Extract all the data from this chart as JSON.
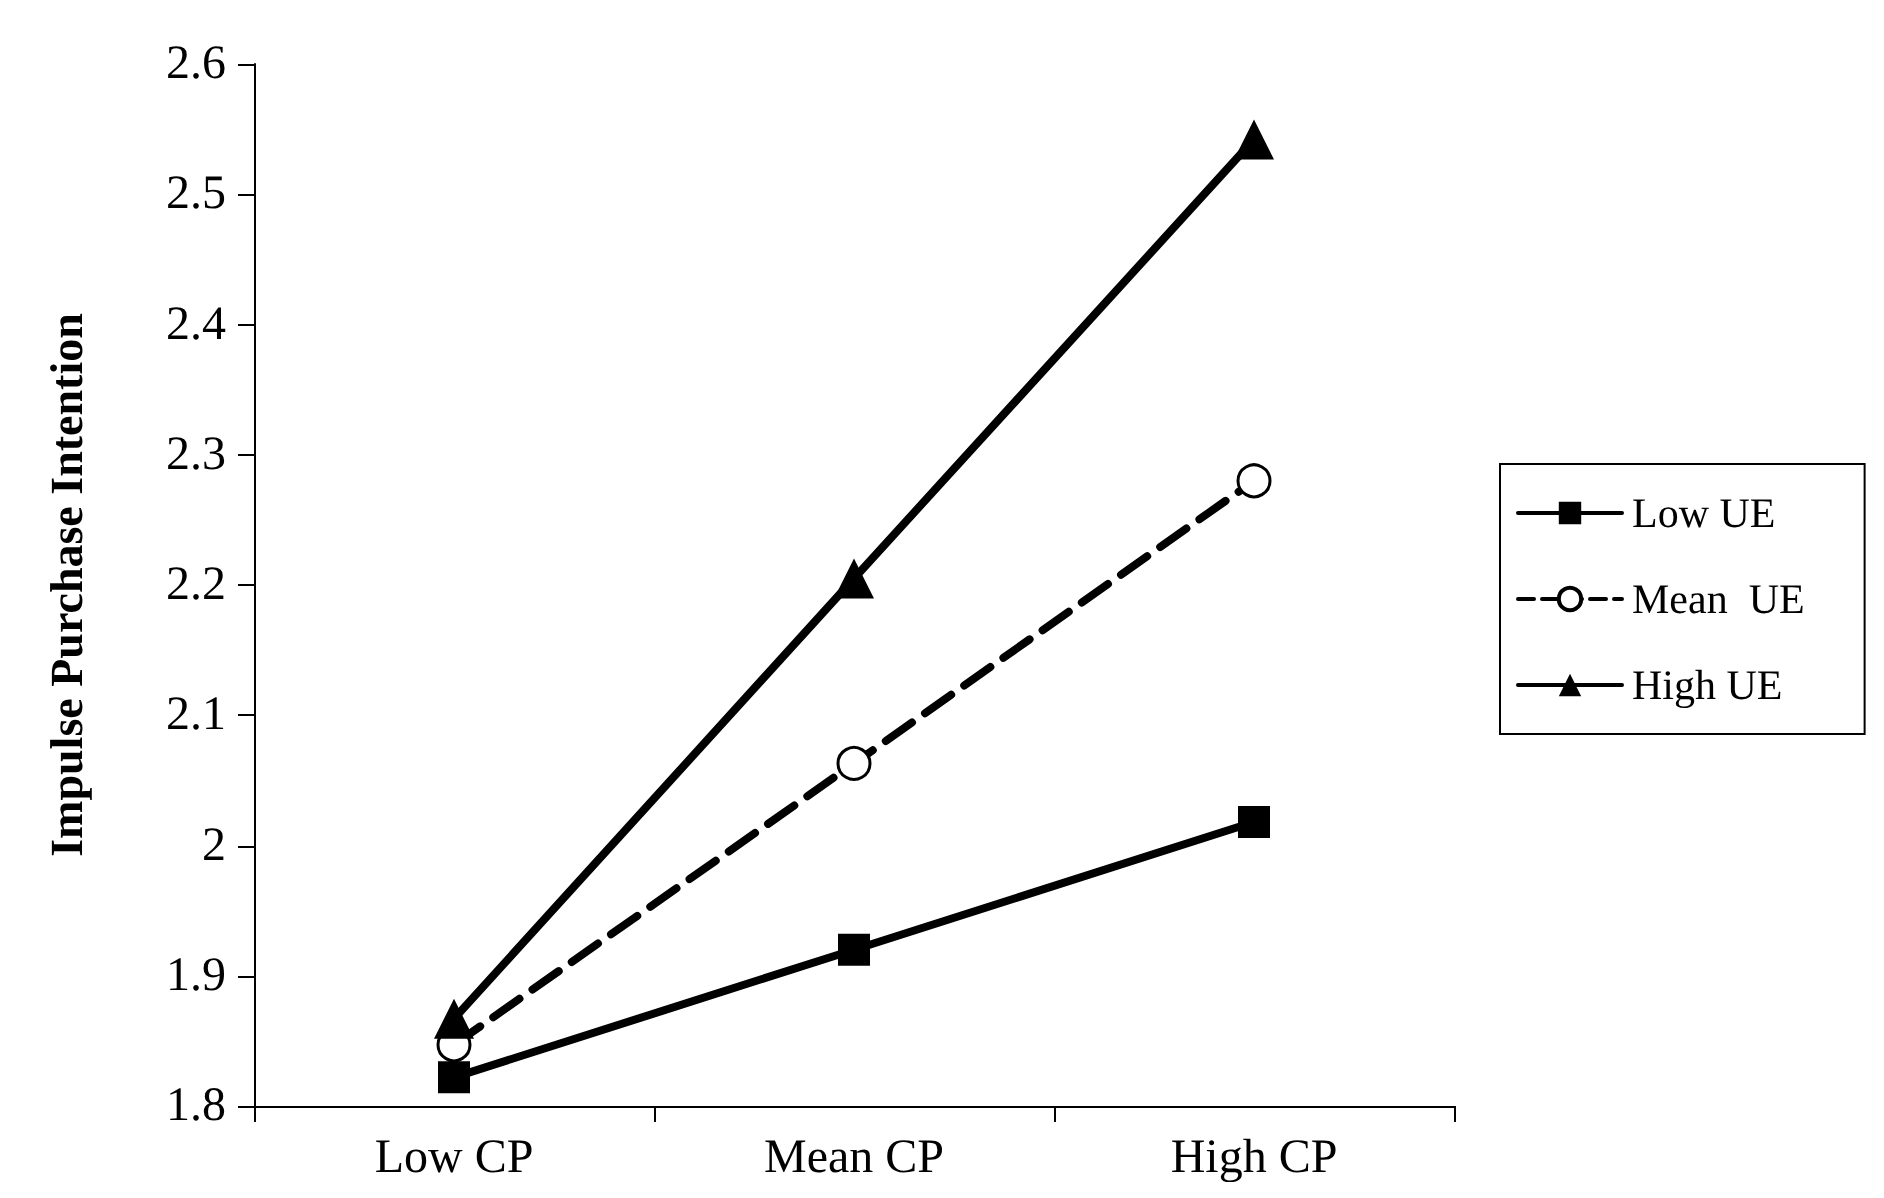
{
  "chart_data": {
    "type": "line",
    "ylabel": "Impulse Purchase Intention",
    "categories": [
      "Low CP",
      "Mean CP",
      "High CP"
    ],
    "series": [
      {
        "name": "Low UE",
        "color": "#000000",
        "values": [
          1.822,
          1.92,
          2.018
        ],
        "marker": "square",
        "line_style": "solid"
      },
      {
        "name": "Mean  UE",
        "color": "#000000",
        "values": [
          1.847,
          2.063,
          2.28
        ],
        "marker": "circle",
        "line_style": "dashed"
      },
      {
        "name": "High UE",
        "color": "#000000",
        "values": [
          1.867,
          2.205,
          2.542
        ],
        "marker": "triangle",
        "line_style": "solid"
      }
    ],
    "ylim": [
      1.8,
      2.6
    ],
    "yticks": [
      1.8,
      1.9,
      2,
      2.1,
      2.2,
      2.3,
      2.4,
      2.5,
      2.6
    ],
    "grid": false,
    "legend": "right"
  }
}
